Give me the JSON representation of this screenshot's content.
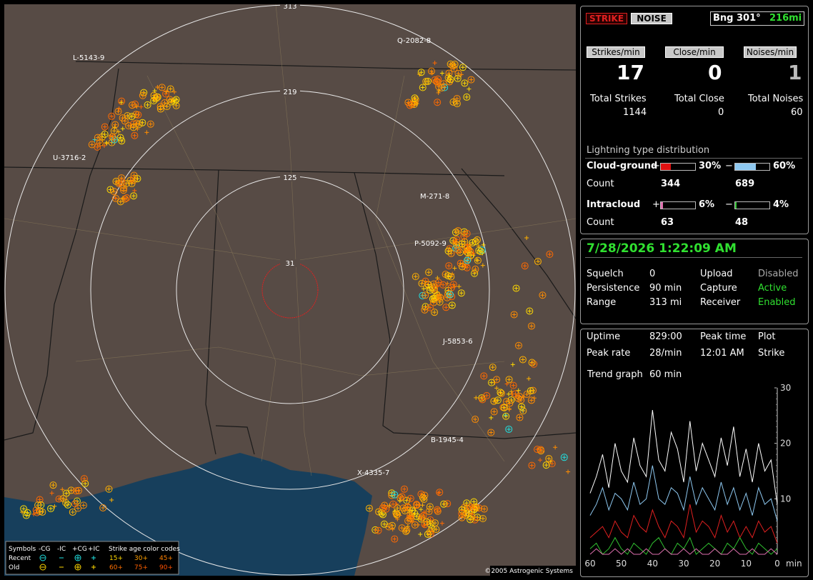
{
  "map": {
    "ring_labels": [
      "313",
      "219",
      "125",
      "31"
    ],
    "storm_labels": [
      "L-5143-9",
      "Q-2082-8",
      "U-3716-2",
      "M-271-8",
      "P-5092-9",
      "J-5853-6",
      "B-1945-4",
      "X-4335-7"
    ],
    "legend": {
      "symbols": "Symbols",
      "neg_cg": "-CG",
      "neg_ic": "-IC",
      "pos_cg": "+CG",
      "pos_ic": "+IC",
      "age_title": "Strike age color codes",
      "recent": "Recent",
      "old": "Old",
      "ages": [
        "15+",
        "30+",
        "45+",
        "60+",
        "75+",
        "90+"
      ]
    },
    "copyright": "©2005 Astrogenic Systems"
  },
  "panel": {
    "buttons": {
      "strike": "STRIKE",
      "noise": "NOISE"
    },
    "bearing": {
      "label": "Bng 301°",
      "distance": "216mi"
    },
    "rates": [
      {
        "label": "Strikes/min",
        "value": 17,
        "total_label": "Total Strikes",
        "total": 1144
      },
      {
        "label": "Close/min",
        "value": 0,
        "total_label": "Total Close",
        "total": 0
      },
      {
        "label": "Noises/min",
        "value": 1,
        "total_label": "Total Noises",
        "total": 60
      }
    ],
    "distribution": {
      "title": "Lightning type distribution",
      "count_label": "Count",
      "cloud_ground": {
        "label": "Cloud-ground",
        "plus": "+",
        "minus": "−",
        "plus_pct": {
          "value": 30,
          "label": "30%"
        },
        "minus_pct": {
          "value": 60,
          "label": "60%"
        },
        "plus_count": 344,
        "minus_count": 689
      },
      "intracloud": {
        "label": "Intracloud",
        "plus": "+",
        "minus": "−",
        "plus_pct": {
          "value": 6,
          "label": "6%"
        },
        "minus_pct": {
          "value": 4,
          "label": "4%"
        },
        "plus_count": 63,
        "minus_count": 48
      }
    },
    "datetime": "7/28/2026 1:22:09 AM",
    "status": [
      [
        "Squelch",
        "0",
        "Upload",
        "Disabled"
      ],
      [
        "Persistence",
        "90 min",
        "Capture",
        "Active"
      ],
      [
        "Range",
        "313 mi",
        "Receiver",
        "Enabled"
      ]
    ],
    "stats": [
      [
        "Uptime",
        "829:00",
        "Peak time",
        "Plot"
      ],
      [
        "Peak rate",
        "28/min",
        "12:01 AM",
        "Strike"
      ]
    ],
    "trend_label": "Trend graph",
    "trend_span": "60 min"
  },
  "trend": {
    "xlim": [
      60,
      0
    ],
    "ylim": [
      0,
      30
    ],
    "yticks": [
      30,
      20,
      10
    ],
    "xticks": [
      60,
      50,
      40,
      30,
      20,
      10,
      0
    ],
    "x_unit": "min",
    "x": [
      60,
      58,
      56,
      54,
      52,
      50,
      48,
      46,
      44,
      42,
      40,
      38,
      36,
      34,
      32,
      30,
      28,
      26,
      24,
      22,
      20,
      18,
      16,
      14,
      12,
      10,
      8,
      6,
      4,
      2,
      0
    ],
    "series": [
      {
        "color": "#ffffff",
        "values": [
          11,
          14,
          18,
          12,
          20,
          15,
          13,
          21,
          16,
          14,
          26,
          17,
          15,
          22,
          19,
          13,
          24,
          15,
          20,
          17,
          14,
          21,
          16,
          23,
          14,
          19,
          13,
          20,
          15,
          17,
          9
        ]
      },
      {
        "color": "#8ec8f0",
        "values": [
          7,
          9,
          12,
          8,
          11,
          10,
          8,
          13,
          9,
          10,
          16,
          10,
          9,
          12,
          11,
          8,
          14,
          9,
          12,
          10,
          8,
          13,
          9,
          12,
          8,
          11,
          7,
          12,
          9,
          10,
          6
        ]
      },
      {
        "color": "#e02020",
        "values": [
          3,
          4,
          5,
          3,
          6,
          4,
          3,
          7,
          5,
          4,
          8,
          5,
          3,
          6,
          5,
          3,
          9,
          4,
          6,
          5,
          3,
          7,
          4,
          6,
          3,
          5,
          3,
          6,
          4,
          5,
          2
        ]
      },
      {
        "color": "#30c030",
        "values": [
          1,
          2,
          0,
          1,
          3,
          1,
          0,
          2,
          1,
          0,
          2,
          3,
          1,
          0,
          2,
          1,
          3,
          0,
          1,
          2,
          1,
          0,
          2,
          1,
          3,
          1,
          0,
          2,
          1,
          0,
          1
        ]
      },
      {
        "color": "#e070b0",
        "values": [
          0,
          1,
          0,
          0,
          1,
          0,
          1,
          0,
          0,
          1,
          0,
          0,
          1,
          0,
          0,
          1,
          0,
          1,
          0,
          0,
          1,
          0,
          0,
          1,
          0,
          0,
          1,
          0,
          0,
          1,
          0
        ]
      }
    ]
  }
}
